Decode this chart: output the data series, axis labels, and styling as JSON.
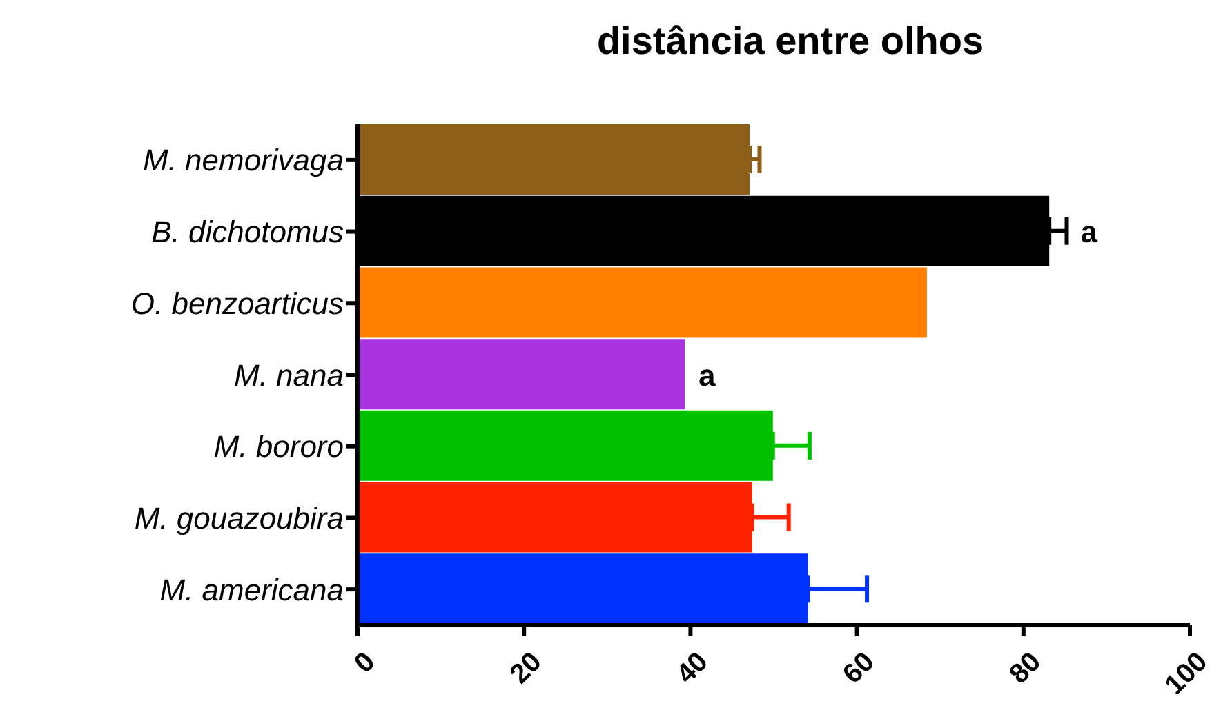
{
  "chart_data": {
    "type": "bar",
    "orientation": "horizontal",
    "title": "distância entre olhos",
    "categories": [
      "M. nemorivaga",
      "B. dichotomus",
      "O. benzoarticus",
      "M. nana",
      "M. bororo",
      "M. gouazoubira",
      "M. americana"
    ],
    "values": [
      47.1,
      83.1,
      68.4,
      39.3,
      49.9,
      47.4,
      54.1
    ],
    "colors": [
      "#8c5e17",
      "#000000",
      "#ff7f00",
      "#aa33e0",
      "#00c000",
      "#ff2200",
      "#0033ff"
    ],
    "errors": [
      [
        47.1,
        48.3
      ],
      [
        83.1,
        85.2
      ],
      null,
      null,
      [
        49.9,
        54.3
      ],
      [
        47.4,
        51.8
      ],
      [
        54.1,
        61.2
      ]
    ],
    "xlim": [
      0,
      100
    ],
    "xticks": [
      0,
      20,
      40,
      60,
      80,
      100
    ],
    "annotations": [
      {
        "text": "a",
        "x": 85.2,
        "y": "B. dichotomus"
      },
      {
        "text": "a",
        "x": 39.3,
        "y": "M. nana"
      }
    ]
  }
}
